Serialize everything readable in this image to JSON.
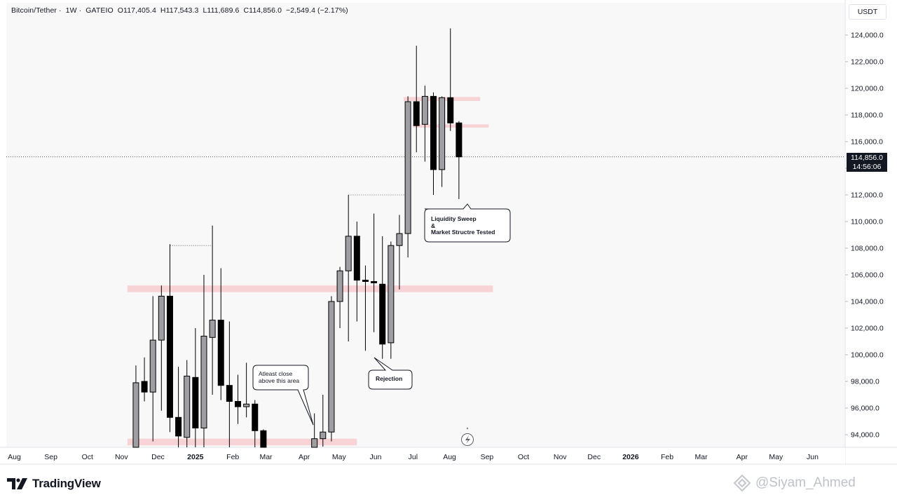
{
  "legend": {
    "symbol": "Bitcoin/Tether",
    "interval": "1W",
    "exchange": "GATEIO",
    "open": "O117,405.4",
    "high": "H117,543.3",
    "low": "L111,689.6",
    "close": "C114,856.0",
    "change": "−2,549.4 (−2.17%)"
  },
  "currency": "USDT",
  "last_price": {
    "value": "114,856.0",
    "countdown": "14:56:06"
  },
  "brand": "TradingView",
  "watermark": "@Siyam_Ahmed",
  "annotations": {
    "liquidity_line1": "Liquidity Sweep",
    "liquidity_line2": "&",
    "liquidity_line3": "Market Structre Tested",
    "rejection": "Rejection",
    "close_line1": "Atleast close",
    "close_line2": "above this area"
  },
  "colors": {
    "bull_candle": "#9e9ea3",
    "bear_candle": "#000000",
    "zone": "#f7cdd0",
    "grid_text": "#131722"
  },
  "chart_data": {
    "type": "candlestick",
    "title": "",
    "ylim": [
      92500,
      126000
    ],
    "y_ticks": [
      {
        "value": 94000,
        "label": "94,000.0"
      },
      {
        "value": 96000,
        "label": "96,000.0"
      },
      {
        "value": 98000,
        "label": "98,000.0"
      },
      {
        "value": 100000,
        "label": "100,000.0"
      },
      {
        "value": 102000,
        "label": "102,000.0"
      },
      {
        "value": 104000,
        "label": "104,000.0"
      },
      {
        "value": 106000,
        "label": "106,000.0"
      },
      {
        "value": 108000,
        "label": "108,000.0"
      },
      {
        "value": 110000,
        "label": "110,000.0"
      },
      {
        "value": 112000,
        "label": "112,000.0"
      },
      {
        "value": 114000,
        "label": "114,000.0"
      },
      {
        "value": 116000,
        "label": "116,000.0"
      },
      {
        "value": 118000,
        "label": "118,000.0"
      },
      {
        "value": 120000,
        "label": "120,000.0"
      },
      {
        "value": 122000,
        "label": "122,000.0"
      },
      {
        "value": 124000,
        "label": "124,000.0"
      }
    ],
    "x_ticks": [
      {
        "week": -26.3,
        "label": "Aug",
        "bold": false
      },
      {
        "week": -22.0,
        "label": "Sep",
        "bold": false
      },
      {
        "week": -17.7,
        "label": "Oct",
        "bold": false
      },
      {
        "week": -13.7,
        "label": "Nov",
        "bold": false
      },
      {
        "week": -9.4,
        "label": "Dec",
        "bold": false
      },
      {
        "week": -5.0,
        "label": "2025",
        "bold": true
      },
      {
        "week": -0.6,
        "label": "Feb",
        "bold": false
      },
      {
        "week": 3.3,
        "label": "Mar",
        "bold": false
      },
      {
        "week": 7.8,
        "label": "Apr",
        "bold": false
      },
      {
        "week": 11.9,
        "label": "May",
        "bold": false
      },
      {
        "week": 16.2,
        "label": "Jun",
        "bold": false
      },
      {
        "week": 20.6,
        "label": "Jul",
        "bold": false
      },
      {
        "week": 24.9,
        "label": "Aug",
        "bold": false
      },
      {
        "week": 29.3,
        "label": "Sep",
        "bold": false
      },
      {
        "week": 33.6,
        "label": "Oct",
        "bold": false
      },
      {
        "week": 37.9,
        "label": "Nov",
        "bold": false
      },
      {
        "week": 41.9,
        "label": "Dec",
        "bold": false
      },
      {
        "week": 46.2,
        "label": "2026",
        "bold": true
      },
      {
        "week": 50.5,
        "label": "Feb",
        "bold": false
      },
      {
        "week": 54.5,
        "label": "Mar",
        "bold": false
      },
      {
        "week": 59.3,
        "label": "Apr",
        "bold": false
      },
      {
        "week": 63.3,
        "label": "May",
        "bold": false
      },
      {
        "week": 67.6,
        "label": "Jun",
        "bold": false
      }
    ],
    "candles": [
      {
        "week": -12,
        "o": 93000,
        "h": 99200,
        "l": 92500,
        "c": 97900
      },
      {
        "week": -11,
        "o": 98000,
        "h": 99800,
        "l": 96500,
        "c": 97200
      },
      {
        "week": -10,
        "o": 97200,
        "h": 104400,
        "l": 93500,
        "c": 101100
      },
      {
        "week": -9,
        "o": 101100,
        "h": 105200,
        "l": 95800,
        "c": 104400
      },
      {
        "week": -8,
        "o": 104400,
        "h": 108300,
        "l": 94200,
        "c": 95300
      },
      {
        "week": -7,
        "o": 95300,
        "h": 99100,
        "l": 92800,
        "c": 93900
      },
      {
        "week": -6,
        "o": 93800,
        "h": 99600,
        "l": 92500,
        "c": 98400
      },
      {
        "week": -5,
        "o": 98300,
        "h": 102000,
        "l": 92500,
        "c": 94500
      },
      {
        "week": -4,
        "o": 94500,
        "h": 106000,
        "l": 92500,
        "c": 101400
      },
      {
        "week": -3,
        "o": 101300,
        "h": 109700,
        "l": 97000,
        "c": 102600
      },
      {
        "week": -2,
        "o": 102600,
        "h": 106500,
        "l": 96600,
        "c": 97700
      },
      {
        "week": -1,
        "o": 97700,
        "h": 102500,
        "l": 92500,
        "c": 96500
      },
      {
        "week": 0,
        "o": 96500,
        "h": 98500,
        "l": 94800,
        "c": 96100
      },
      {
        "week": 1,
        "o": 96100,
        "h": 99400,
        "l": 95300,
        "c": 96300
      },
      {
        "week": 2,
        "o": 96300,
        "h": 96600,
        "l": 92500,
        "c": 94300
      },
      {
        "week": 3,
        "o": 94300,
        "h": 94400,
        "l": 92500,
        "c": 92500
      },
      {
        "week": 9,
        "o": 92500,
        "h": 95600,
        "l": 92500,
        "c": 93700
      },
      {
        "week": 10,
        "o": 93700,
        "h": 97000,
        "l": 93100,
        "c": 94200
      },
      {
        "week": 11,
        "o": 94200,
        "h": 104400,
        "l": 93500,
        "c": 104000
      },
      {
        "week": 12,
        "o": 104000,
        "h": 106600,
        "l": 102000,
        "c": 106300
      },
      {
        "week": 13,
        "o": 106300,
        "h": 112000,
        "l": 101000,
        "c": 108900
      },
      {
        "week": 14,
        "o": 108900,
        "h": 110000,
        "l": 102500,
        "c": 105600
      },
      {
        "week": 15,
        "o": 105600,
        "h": 106700,
        "l": 100300,
        "c": 105500
      },
      {
        "week": 16,
        "o": 105500,
        "h": 110600,
        "l": 101700,
        "c": 105400
      },
      {
        "week": 17,
        "o": 105300,
        "h": 108900,
        "l": 99700,
        "c": 100800
      },
      {
        "week": 18,
        "o": 100900,
        "h": 108500,
        "l": 99700,
        "c": 108200
      },
      {
        "week": 19,
        "o": 108200,
        "h": 110500,
        "l": 104900,
        "c": 109100
      },
      {
        "week": 20,
        "o": 109100,
        "h": 119400,
        "l": 107300,
        "c": 119000
      },
      {
        "week": 21,
        "o": 119000,
        "h": 123200,
        "l": 115200,
        "c": 117200
      },
      {
        "week": 22,
        "o": 117300,
        "h": 120200,
        "l": 114500,
        "c": 119400
      },
      {
        "week": 23,
        "o": 119400,
        "h": 119700,
        "l": 112000,
        "c": 113900
      },
      {
        "week": 24,
        "o": 113900,
        "h": 119400,
        "l": 112600,
        "c": 119300
      },
      {
        "week": 25,
        "o": 119300,
        "h": 124500,
        "l": 116800,
        "c": 117400
      },
      {
        "week": 26,
        "o": 117405.4,
        "h": 117543.3,
        "l": 111689.6,
        "c": 114856.0
      }
    ],
    "zones": [
      {
        "w0": -13,
        "w1": 30,
        "y0": 104700,
        "y1": 105200
      },
      {
        "w0": -13,
        "w1": 14,
        "y0": 93200,
        "y1": 93700
      },
      {
        "w0": 19.5,
        "w1": 28.5,
        "y0": 119050,
        "y1": 119350
      },
      {
        "w0": 20.6,
        "w1": 29.5,
        "y0": 117050,
        "y1": 117300
      }
    ],
    "dotted_lines": [
      {
        "w0": 13,
        "w1": 20,
        "y": 112000
      },
      {
        "w0": -8,
        "w1": -3,
        "y": 108200
      }
    ],
    "current_price": 114856.0
  }
}
